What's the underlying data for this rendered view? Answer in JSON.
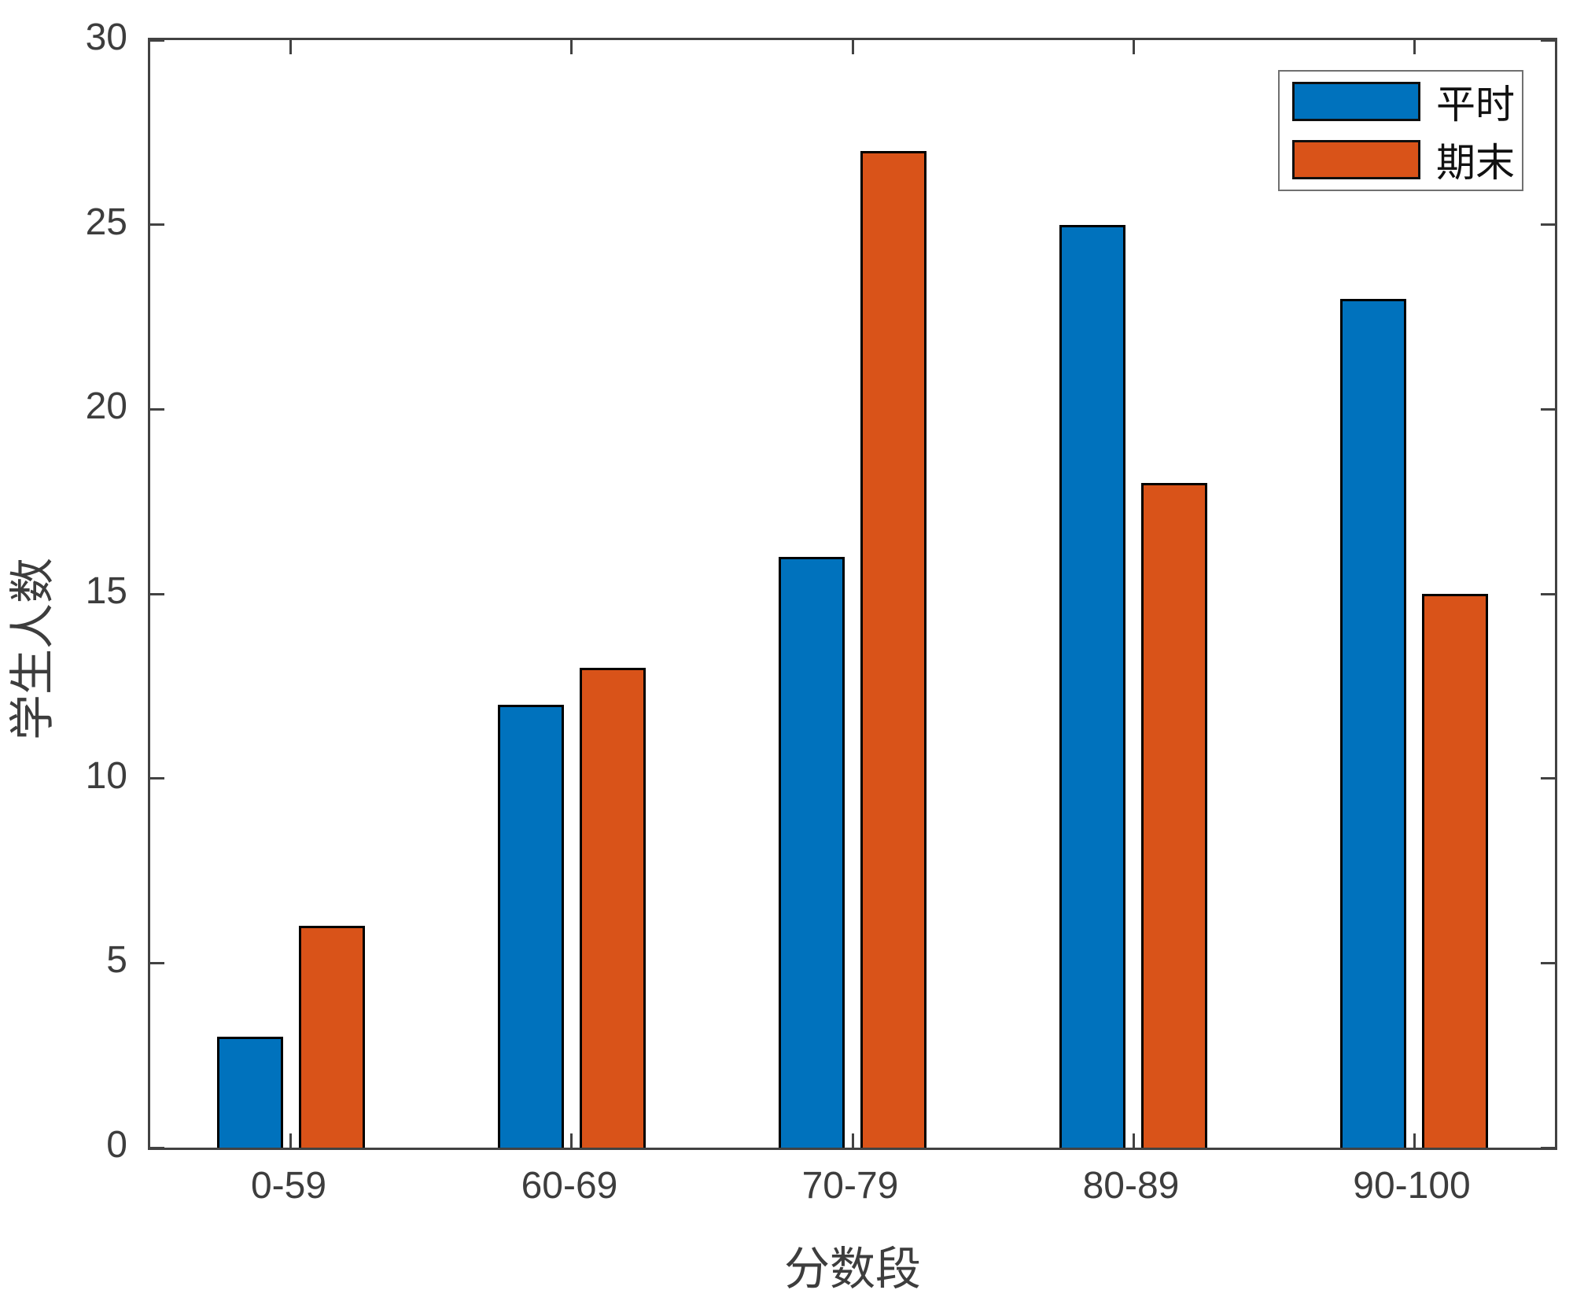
{
  "chart_data": {
    "type": "bar",
    "title": "",
    "categories": [
      "0-59",
      "60-69",
      "70-79",
      "80-89",
      "90-100"
    ],
    "series": [
      {
        "name": "平时",
        "color": "#0072BD",
        "values": [
          3,
          12,
          16,
          25,
          23
        ]
      },
      {
        "name": "期末",
        "color": "#D95319",
        "values": [
          6,
          13,
          27,
          18,
          15
        ]
      }
    ],
    "xlabel": "分数段",
    "ylabel": "学生人数",
    "ylim": [
      0,
      30
    ],
    "yticks": [
      0,
      5,
      10,
      15,
      20,
      25,
      30
    ],
    "grid": false,
    "legend": {
      "position": "top-right",
      "entries": [
        "平时",
        "期末"
      ]
    },
    "colors": {
      "series1": "#0072BD",
      "series2": "#D95319",
      "bar_edge": "#000000",
      "axis": "#424242",
      "text": "#3d3d3d"
    }
  }
}
